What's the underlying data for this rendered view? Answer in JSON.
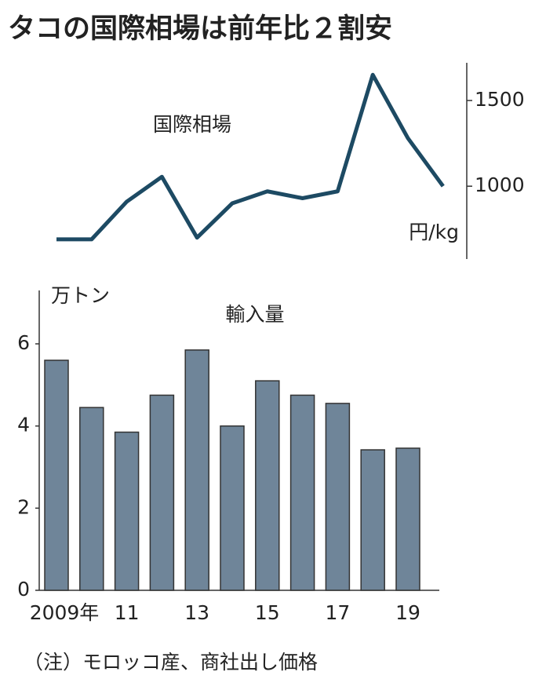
{
  "title": "タコの国際相場は前年比２割安",
  "note": "（注）モロッコ産、商社出し価格",
  "chart_data": [
    {
      "type": "line",
      "label": "国際相場",
      "y_unit": "円/kg",
      "axis_side": "right",
      "color": "#1d4a63",
      "categories": [
        null,
        null,
        null,
        null,
        null,
        null,
        null,
        null,
        null,
        null,
        null,
        null
      ],
      "values": [
        690,
        690,
        910,
        1055,
        700,
        900,
        970,
        930,
        970,
        1650,
        1280,
        1000
      ],
      "ylim": [
        575,
        1720
      ],
      "yticks": [
        1000,
        1500
      ]
    },
    {
      "type": "bar",
      "label": "輸入量",
      "y_unit": "万トン",
      "color": "#6f8599",
      "categories": [
        "2009年",
        null,
        "11",
        null,
        "13",
        null,
        "15",
        null,
        "17",
        null,
        "19"
      ],
      "values": [
        5.6,
        4.45,
        3.85,
        4.75,
        5.85,
        4.0,
        5.1,
        4.75,
        4.55,
        3.42,
        3.46
      ],
      "ylim": [
        0,
        7.3
      ],
      "yticks": [
        0,
        2,
        4,
        6
      ]
    }
  ]
}
